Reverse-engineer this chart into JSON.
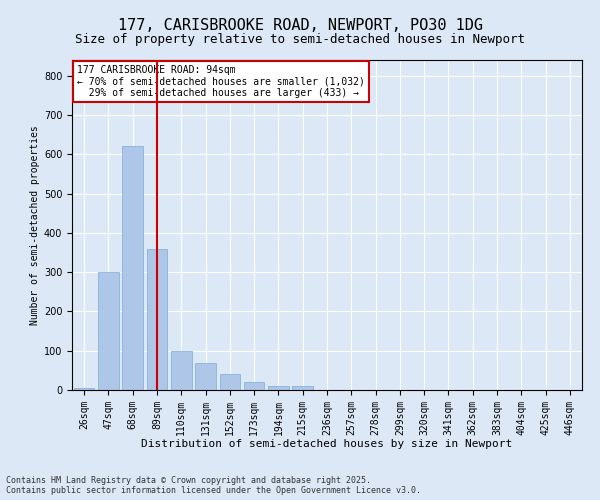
{
  "title": "177, CARISBROOKE ROAD, NEWPORT, PO30 1DG",
  "subtitle": "Size of property relative to semi-detached houses in Newport",
  "xlabel": "Distribution of semi-detached houses by size in Newport",
  "ylabel": "Number of semi-detached properties",
  "categories": [
    "26sqm",
    "47sqm",
    "68sqm",
    "89sqm",
    "110sqm",
    "131sqm",
    "152sqm",
    "173sqm",
    "194sqm",
    "215sqm",
    "236sqm",
    "257sqm",
    "278sqm",
    "299sqm",
    "320sqm",
    "341sqm",
    "362sqm",
    "383sqm",
    "404sqm",
    "425sqm",
    "446sqm"
  ],
  "values": [
    5,
    300,
    620,
    360,
    100,
    70,
    40,
    20,
    10,
    10,
    0,
    0,
    0,
    0,
    0,
    0,
    0,
    0,
    0,
    0,
    0
  ],
  "bar_color": "#aec6e8",
  "bar_edge_color": "#7aafd4",
  "vline_x": 3,
  "vline_color": "#cc0000",
  "annotation_text": "177 CARISBROOKE ROAD: 94sqm\n← 70% of semi-detached houses are smaller (1,032)\n  29% of semi-detached houses are larger (433) →",
  "annotation_box_color": "#ffffff",
  "annotation_box_edge": "#cc0000",
  "footer_text": "Contains HM Land Registry data © Crown copyright and database right 2025.\nContains public sector information licensed under the Open Government Licence v3.0.",
  "ylim": [
    0,
    840
  ],
  "yticks": [
    0,
    100,
    200,
    300,
    400,
    500,
    600,
    700,
    800
  ],
  "bg_color": "#dce8f5",
  "plot_bg_color": "#dce8f5",
  "title_fontsize": 11,
  "subtitle_fontsize": 9,
  "tick_fontsize": 7,
  "ylabel_fontsize": 7,
  "xlabel_fontsize": 8,
  "footer_fontsize": 6,
  "annotation_fontsize": 7
}
